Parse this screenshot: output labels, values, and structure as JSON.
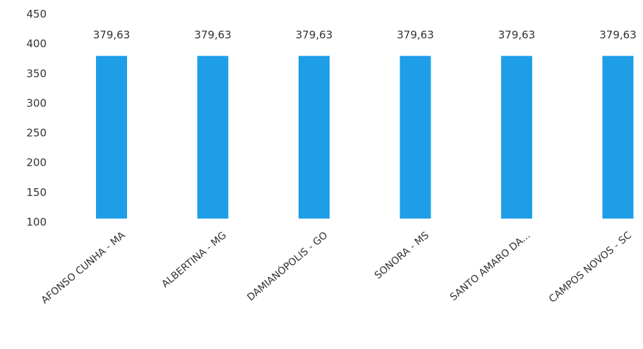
{
  "chart_data": {
    "type": "bar",
    "title": "",
    "xlabel": "",
    "ylabel": "",
    "categories": [
      "AFONSO CUNHA - MA",
      "ALBERTINA - MG",
      "DAMIANÓPOLIS - GO",
      "SONORA - MS",
      "SANTO AMARO DA...",
      "CAMPOS NOVOS - SC"
    ],
    "values": [
      379.63,
      379.63,
      379.63,
      379.63,
      379.63,
      379.63
    ],
    "data_labels": [
      "379,63",
      "379,63",
      "379,63",
      "379,63",
      "379,63",
      "379,63"
    ],
    "yticks": [
      "100",
      "150",
      "200",
      "250",
      "300",
      "350",
      "400",
      "450"
    ],
    "ylim": [
      100,
      450
    ],
    "grid": false,
    "legend": "none",
    "bar_color": "#1f9ee8"
  }
}
